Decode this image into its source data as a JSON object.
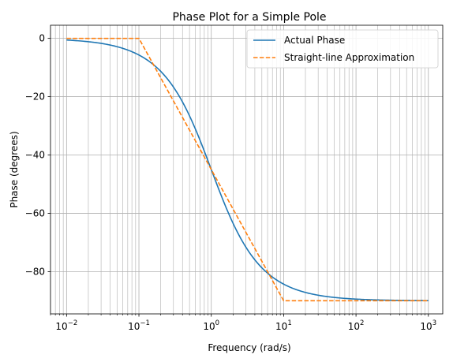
{
  "chart_data": {
    "type": "line",
    "title": "Phase Plot for a Simple Pole",
    "xlabel": "Frequency (rad/s)",
    "ylabel": "Phase (degrees)",
    "x_scale": "log",
    "xlim": [
      0.006,
      1580
    ],
    "ylim": [
      -94.5,
      4.5
    ],
    "grid": true,
    "grid_which": "both",
    "legend_position": "top-right",
    "x_ticks": [
      {
        "value": 0.01,
        "base": "10",
        "exp": "−2"
      },
      {
        "value": 0.1,
        "base": "10",
        "exp": "−1"
      },
      {
        "value": 1,
        "base": "10",
        "exp": "0"
      },
      {
        "value": 10,
        "base": "10",
        "exp": "1"
      },
      {
        "value": 100,
        "base": "10",
        "exp": "2"
      },
      {
        "value": 1000,
        "base": "10",
        "exp": "3"
      }
    ],
    "y_ticks": [
      {
        "value": 0,
        "label": "0"
      },
      {
        "value": -20,
        "label": "−20"
      },
      {
        "value": -40,
        "label": "−40"
      },
      {
        "value": -60,
        "label": "−60"
      },
      {
        "value": -80,
        "label": "−80"
      }
    ],
    "series": [
      {
        "name": "Actual Phase",
        "color": "#1f77b4",
        "style": "solid",
        "function": "phase = -arctan(omega) in degrees",
        "x_range": [
          0.01,
          1000
        ]
      },
      {
        "name": "Straight-line Approximation",
        "color": "#ff7f0e",
        "style": "dashed",
        "x": [
          0.01,
          0.1,
          10,
          1000
        ],
        "y": [
          0,
          0,
          -90,
          -90
        ]
      }
    ]
  }
}
